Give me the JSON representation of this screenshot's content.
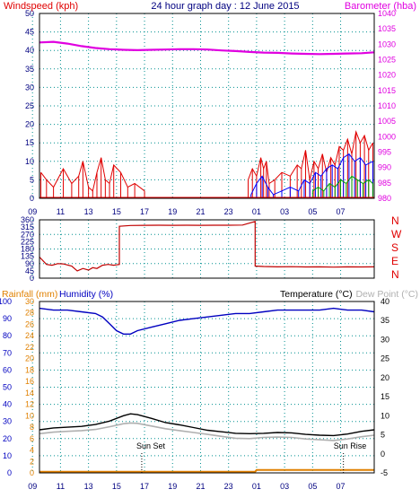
{
  "colors": {
    "wind": "#e00000",
    "gust": "#0000ff",
    "gust2": "#00a000",
    "baro": "#e000e0",
    "winddir": "#c00000",
    "compass": "#e00000",
    "rain": "#e08000",
    "humidity": "#0000c0",
    "temp": "#000000",
    "dew": "#b0b0b0",
    "grid": "#009090",
    "axisText": "#000080",
    "title": "#000080"
  },
  "header": {
    "windspeed_label": "Windspeed (kph)",
    "title": "24 hour graph day : 12 June 2015",
    "barometer_label": "Barometer (hba)"
  },
  "panel3_labels": {
    "rainfall": "Rainfall (mm)",
    "humidity": "Humidity (%)",
    "temperature": "Temperature (°C)",
    "dewpoint": "Dew Point (°C)"
  },
  "annotations": {
    "sunset": "Sun Set",
    "sunrise": "Sun Rise"
  },
  "chart_data": [
    {
      "type": "line",
      "title": "24 hour graph day : 12 June 2015",
      "ylabel": "Windspeed (kph)",
      "y2label": "Barometer (hba)",
      "x_ticks": [
        "11",
        "13",
        "15",
        "17",
        "19",
        "21",
        "23",
        "01",
        "03",
        "05",
        "07",
        "09"
      ],
      "x_range_hours": [
        9.5,
        33.4
      ],
      "ylim": [
        0,
        50
      ],
      "yticks": [
        0,
        5,
        10,
        15,
        20,
        25,
        30,
        35,
        40,
        45,
        50
      ],
      "y2lim": [
        980,
        1040
      ],
      "y2ticks": [
        980,
        985,
        990,
        995,
        1000,
        1005,
        1010,
        1015,
        1020,
        1025,
        1030,
        1035,
        1040
      ],
      "series": [
        {
          "name": "Barometer (hba)",
          "axis": "right",
          "x": [
            9.5,
            10.5,
            11.5,
            12.5,
            13.5,
            14.5,
            15.5,
            16.5,
            17.5,
            18.5,
            19.5,
            20.5,
            21.5,
            22.5,
            23.5,
            24.5,
            25.5,
            26.5,
            27.5,
            28.5,
            29.5,
            30.5,
            31.5,
            32.5,
            33.4
          ],
          "values": [
            1030.6,
            1030.8,
            1030.2,
            1029.4,
            1028.8,
            1028.4,
            1028.2,
            1028.1,
            1028.2,
            1028.3,
            1028.4,
            1028.4,
            1028.3,
            1028.0,
            1027.8,
            1027.5,
            1027.3,
            1027.2,
            1027.0,
            1026.9,
            1026.8,
            1026.9,
            1027.0,
            1027.1,
            1027.4
          ]
        },
        {
          "name": "Windspeed",
          "axis": "left",
          "x": [
            9.6,
            10.0,
            10.5,
            11.2,
            11.8,
            12.3,
            12.6,
            13.0,
            13.3,
            13.6,
            13.9,
            14.2,
            14.5,
            14.8,
            15.3,
            15.8,
            16.3,
            17.0,
            24.4,
            24.7,
            25.0,
            25.3,
            25.5,
            25.7,
            25.9,
            26.3,
            26.8,
            27.4,
            27.9,
            28.2,
            28.5,
            28.8,
            29.1,
            29.4,
            29.7,
            30.0,
            30.3,
            30.6,
            30.9,
            31.2,
            31.5,
            31.8,
            32.1,
            32.4,
            32.7,
            33.0,
            33.3
          ],
          "values": [
            7,
            5,
            3,
            8,
            4,
            6,
            10,
            3,
            2,
            7,
            11,
            5,
            4,
            9,
            7,
            3,
            4,
            2,
            5,
            8,
            6,
            11,
            8,
            10,
            4,
            5,
            7,
            6,
            9,
            8,
            13,
            5,
            10,
            8,
            12,
            7,
            11,
            9,
            14,
            13,
            16,
            12,
            18,
            15,
            17,
            13,
            15
          ]
        },
        {
          "name": "Gust",
          "axis": "left",
          "x": [
            24.6,
            25.0,
            25.4,
            25.8,
            26.2,
            26.8,
            27.4,
            28.0,
            28.4,
            28.8,
            29.2,
            29.6,
            30.0,
            30.4,
            30.8,
            31.2,
            31.6,
            32.0,
            32.4,
            32.8,
            33.3
          ],
          "values": [
            1,
            4,
            6,
            3,
            1,
            2,
            3,
            2,
            5,
            4,
            7,
            6,
            8,
            9,
            8,
            11,
            12,
            10,
            11,
            9,
            10
          ]
        },
        {
          "name": "Gust 2",
          "axis": "left",
          "x": [
            29.0,
            29.4,
            29.8,
            30.2,
            30.6,
            31.0,
            31.4,
            31.8,
            32.2,
            32.6,
            33.0,
            33.3
          ],
          "values": [
            2,
            3,
            2,
            4,
            3,
            5,
            4,
            6,
            5,
            4,
            5,
            4
          ]
        }
      ]
    },
    {
      "type": "line",
      "title": "",
      "ylabel": "",
      "ylim": [
        0,
        360
      ],
      "yticks": [
        0,
        45,
        90,
        135,
        180,
        225,
        270,
        315,
        360
      ],
      "compass_labels": [
        "N",
        "W",
        "S",
        "E",
        "N"
      ],
      "series": [
        {
          "name": "Wind direction",
          "x": [
            9.5,
            10.0,
            10.4,
            10.8,
            11.2,
            11.8,
            12.2,
            12.6,
            13.0,
            13.3,
            13.6,
            14.0,
            14.4,
            14.8,
            15.2,
            15.2,
            16.0,
            17.0,
            18.0,
            19.0,
            20.0,
            21.0,
            22.0,
            23.0,
            24.0,
            24.9,
            24.9,
            25.5,
            26.5,
            27.5,
            28.5,
            29.5,
            30.5,
            31.5,
            32.5,
            33.4
          ],
          "values": [
            130,
            85,
            80,
            90,
            88,
            75,
            45,
            60,
            50,
            65,
            60,
            80,
            85,
            80,
            85,
            320,
            325,
            326,
            327,
            326,
            327,
            326,
            327,
            327,
            328,
            350,
            75,
            72,
            70,
            71,
            69,
            70,
            68,
            70,
            69,
            70
          ]
        }
      ]
    },
    {
      "type": "line",
      "title": "",
      "ylabel": "Humidity (%)",
      "y2label": "Temperature (°C)",
      "ylim": [
        0,
        100
      ],
      "yticks": [
        0,
        10,
        20,
        30,
        40,
        50,
        60,
        70,
        80,
        90,
        100
      ],
      "rain_ticks": [
        0,
        2,
        4,
        6,
        8,
        10,
        12,
        14,
        16,
        18,
        20,
        22,
        24,
        26,
        28,
        30
      ],
      "y2lim": [
        -5,
        40
      ],
      "y2ticks": [
        -5,
        0,
        5,
        10,
        15,
        20,
        25,
        30,
        35,
        40
      ],
      "series": [
        {
          "name": "Humidity (%)",
          "axis": "humidity",
          "x": [
            9.5,
            10.5,
            11.5,
            12.5,
            13.5,
            14.0,
            14.5,
            15.0,
            15.5,
            16.0,
            16.5,
            17.5,
            18.5,
            19.5,
            20.5,
            21.5,
            22.5,
            23.5,
            24.5,
            25.5,
            26.5,
            27.5,
            28.5,
            29.5,
            30.5,
            31.5,
            32.5,
            33.4
          ],
          "values": [
            96,
            95,
            95,
            94,
            93,
            91,
            87,
            83,
            81,
            81,
            83,
            85,
            87,
            89,
            90,
            91,
            92,
            93,
            93,
            94,
            95,
            95,
            95,
            95,
            96,
            95,
            95,
            94
          ]
        },
        {
          "name": "Temperature (°C)",
          "axis": "temperature",
          "x": [
            9.5,
            10.5,
            11.5,
            12.5,
            13.5,
            14.5,
            15.5,
            16.0,
            16.5,
            17.5,
            18.5,
            19.5,
            20.5,
            21.5,
            22.5,
            23.5,
            24.5,
            25.5,
            26.5,
            27.5,
            28.5,
            29.5,
            30.5,
            31.5,
            32.5,
            33.4
          ],
          "values": [
            6.3,
            6.8,
            7.0,
            7.2,
            7.7,
            8.6,
            10.0,
            10.5,
            10.3,
            9.3,
            8.2,
            7.6,
            6.9,
            6.2,
            5.8,
            5.4,
            5.3,
            5.4,
            5.6,
            5.5,
            5.1,
            4.9,
            4.8,
            5.2,
            5.9,
            6.3
          ]
        },
        {
          "name": "Dew Point (°C)",
          "axis": "temperature",
          "x": [
            9.5,
            10.5,
            11.5,
            12.5,
            13.5,
            14.5,
            15.5,
            16.0,
            16.5,
            17.5,
            18.5,
            19.5,
            20.5,
            21.5,
            22.5,
            23.5,
            24.5,
            25.5,
            26.5,
            27.5,
            28.5,
            29.5,
            30.5,
            31.5,
            32.5,
            33.4
          ],
          "values": [
            5.3,
            5.7,
            5.9,
            6.1,
            6.4,
            7.1,
            7.9,
            8.1,
            8.0,
            7.3,
            6.6,
            6.1,
            5.6,
            5.1,
            4.6,
            4.1,
            4.0,
            4.3,
            4.4,
            4.3,
            3.9,
            3.7,
            3.5,
            3.9,
            4.5,
            4.9
          ]
        },
        {
          "name": "Rainfall (mm)",
          "axis": "rain",
          "x": [
            9.5,
            24.9,
            25.0,
            33.4
          ],
          "values": [
            0.2,
            0.2,
            0.5,
            0.5
          ]
        }
      ]
    }
  ]
}
